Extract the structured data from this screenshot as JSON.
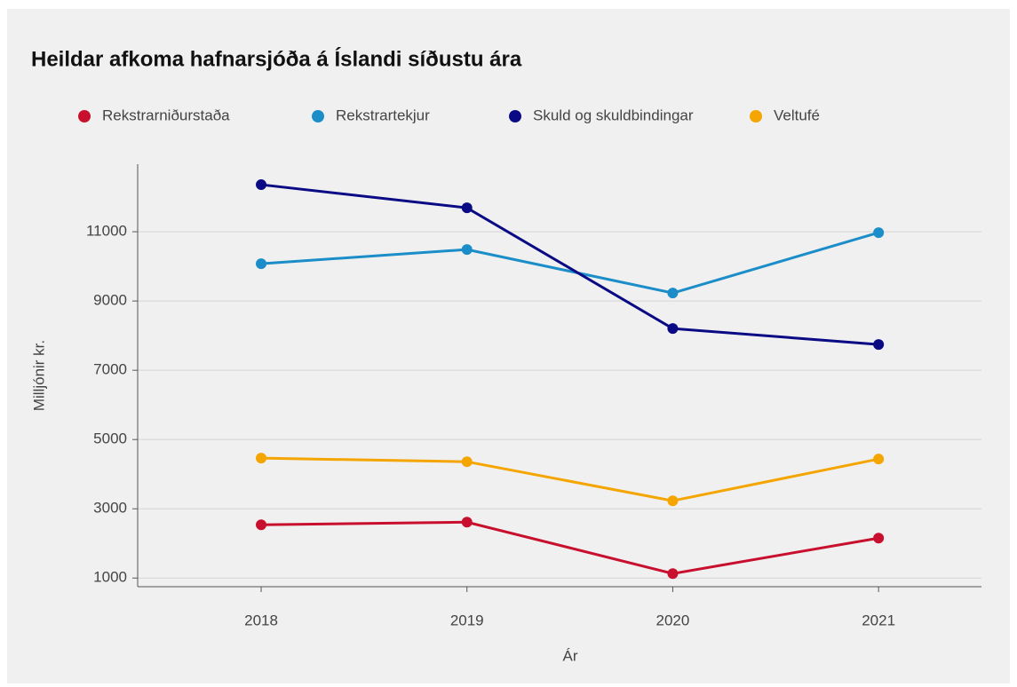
{
  "chart_data": {
    "type": "line",
    "title": "Heildar afkoma hafnarsjóða á Íslandi síðustu ára",
    "x_label": "Ár",
    "y_label": "Milljónir kr.",
    "x": [
      2018,
      2019,
      2020,
      2021
    ],
    "series": [
      {
        "name": "Rekstrarniðurstaða",
        "color": "#c8102e",
        "values": [
          2538,
          2615,
          1128,
          2154
        ]
      },
      {
        "name": "Rekstrartekjur",
        "color": "#1b8dc8",
        "values": [
          10077,
          10487,
          9231,
          10974
        ]
      },
      {
        "name": "Skuld og skuldbindingar",
        "color": "#0a0a85",
        "values": [
          12359,
          11690,
          8205,
          7744
        ]
      },
      {
        "name": "Veltufé",
        "color": "#f5a500",
        "values": [
          4462,
          4359,
          3231,
          4436
        ]
      }
    ],
    "xlim": [
      2017.4,
      2021.5
    ],
    "xticks": [
      2018,
      2019,
      2020,
      2021
    ],
    "ylim": [
      750,
      12950
    ],
    "yticks": [
      1000,
      3000,
      5000,
      7000,
      9000,
      11000
    ],
    "grid": true,
    "legend": "top"
  }
}
